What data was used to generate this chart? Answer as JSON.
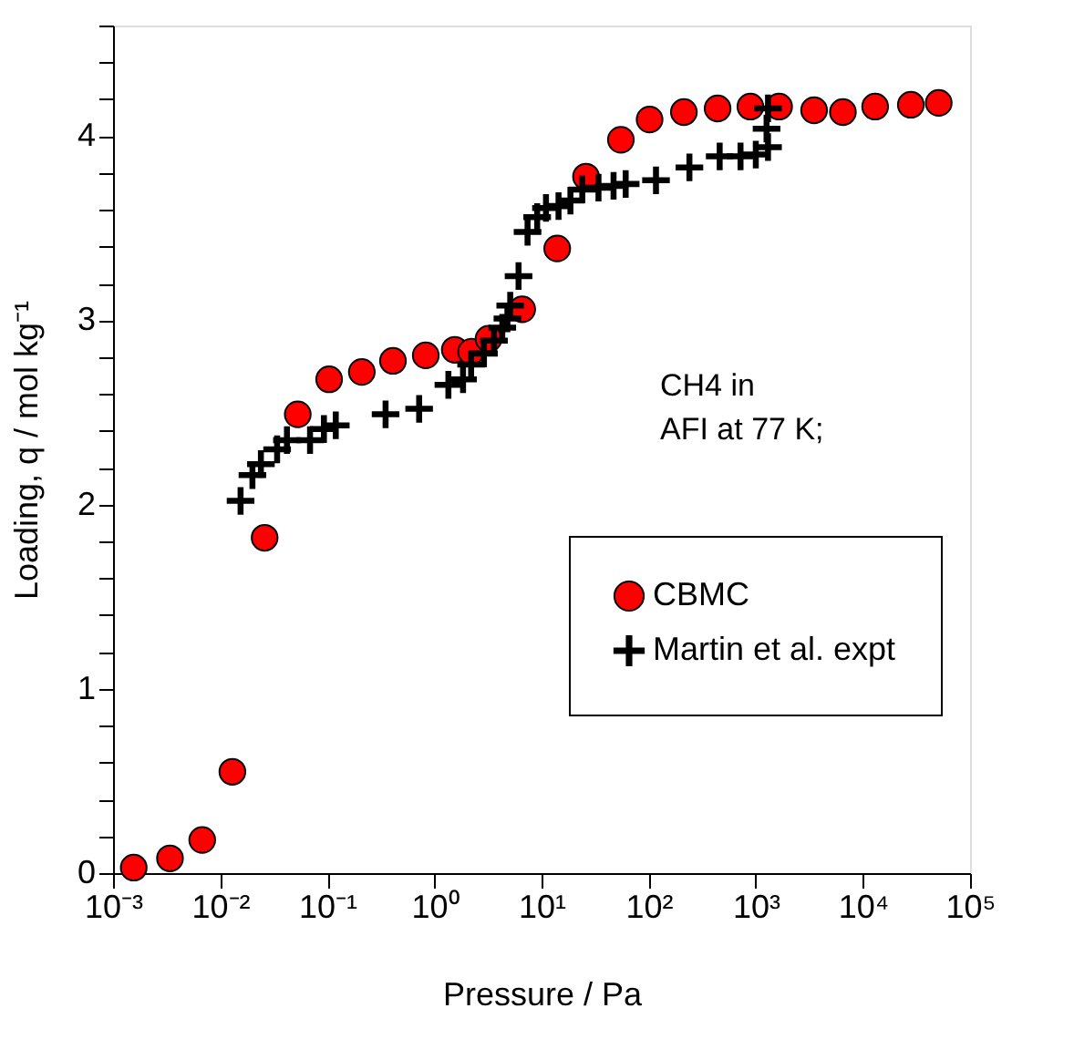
{
  "chart_data": {
    "type": "scatter",
    "xlabel": "Pressure / Pa",
    "ylabel": "Loading, q / mol kg⁻¹",
    "annotations": [
      "CH4 in\nAFI at 77 K;"
    ],
    "log": "x",
    "grid": false,
    "legend": "bottom right",
    "xlim": [
      0.001,
      100000
    ],
    "ylim": [
      0,
      4.6
    ],
    "xticks": [
      {
        "value": 0.001,
        "label": "10⁻³"
      },
      {
        "value": 0.01,
        "label": "10⁻²"
      },
      {
        "value": 0.1,
        "label": "10⁻¹"
      },
      {
        "value": 1,
        "label": "10⁰"
      },
      {
        "value": 10,
        "label": "10¹"
      },
      {
        "value": 100,
        "label": "10²"
      },
      {
        "value": 1000,
        "label": "10³"
      },
      {
        "value": 10000,
        "label": "10⁴"
      },
      {
        "value": 100000,
        "label": "10⁵"
      }
    ],
    "yticks": [
      0,
      {
        "value": 0.2,
        "label": null
      },
      {
        "value": 0.4,
        "label": null
      },
      {
        "value": 0.6,
        "label": null
      },
      {
        "value": 0.8,
        "label": null
      },
      1,
      {
        "value": 1.2,
        "label": null
      },
      {
        "value": 1.4,
        "label": null
      },
      {
        "value": 1.6,
        "label": null
      },
      {
        "value": 1.8,
        "label": null
      },
      2,
      {
        "value": 2.2,
        "label": null
      },
      {
        "value": 2.4,
        "label": null
      },
      {
        "value": 2.6,
        "label": null
      },
      {
        "value": 2.8,
        "label": null
      },
      3,
      {
        "value": 3.2,
        "label": null
      },
      {
        "value": 3.4,
        "label": null
      },
      {
        "value": 3.6,
        "label": null
      },
      {
        "value": 3.8,
        "label": null
      },
      4,
      {
        "value": 4.2,
        "label": null
      },
      {
        "value": 4.4,
        "label": null
      },
      {
        "value": 4.6,
        "label": null
      }
    ],
    "series": [
      {
        "name": "CBMC",
        "color": "#ff0000",
        "marker": "circle",
        "x": [
          0.00156,
          0.0034,
          0.0068,
          0.013,
          0.026,
          0.053,
          0.104,
          0.21,
          0.41,
          0.83,
          1.55,
          2.2,
          3.2,
          6.6,
          14,
          26,
          55,
          102,
          213,
          440,
          890,
          1650,
          3500,
          6500,
          13000,
          28000,
          51000
        ],
        "values": [
          0.03,
          0.08,
          0.18,
          0.55,
          1.82,
          2.49,
          2.68,
          2.72,
          2.78,
          2.81,
          2.84,
          2.83,
          2.9,
          3.06,
          3.39,
          3.78,
          3.98,
          4.09,
          4.13,
          4.15,
          4.16,
          4.16,
          4.14,
          4.13,
          4.16,
          4.17,
          4.18
        ]
      },
      {
        "name": "Martin et al. expt",
        "color": "#000000",
        "marker": "cross",
        "x": [
          0.0155,
          0.02,
          0.024,
          0.034,
          0.042,
          0.069,
          0.093,
          0.12,
          0.35,
          0.72,
          1.35,
          1.85,
          2.2,
          2.9,
          3.6,
          4.3,
          4.8,
          5.1,
          6.1,
          7.4,
          9.1,
          11,
          14.4,
          18.6,
          24,
          34,
          47,
          61,
          117,
          240,
          460,
          720,
          1000,
          1300,
          1260,
          1300
        ],
        "values": [
          2.02,
          2.16,
          2.22,
          2.3,
          2.35,
          2.35,
          2.41,
          2.43,
          2.49,
          2.52,
          2.65,
          2.68,
          2.76,
          2.82,
          2.89,
          2.96,
          3.01,
          3.08,
          3.24,
          3.48,
          3.56,
          3.61,
          3.62,
          3.65,
          3.71,
          3.72,
          3.73,
          3.74,
          3.76,
          3.83,
          3.89,
          3.89,
          3.9,
          3.94,
          4.04,
          4.15
        ]
      }
    ]
  }
}
